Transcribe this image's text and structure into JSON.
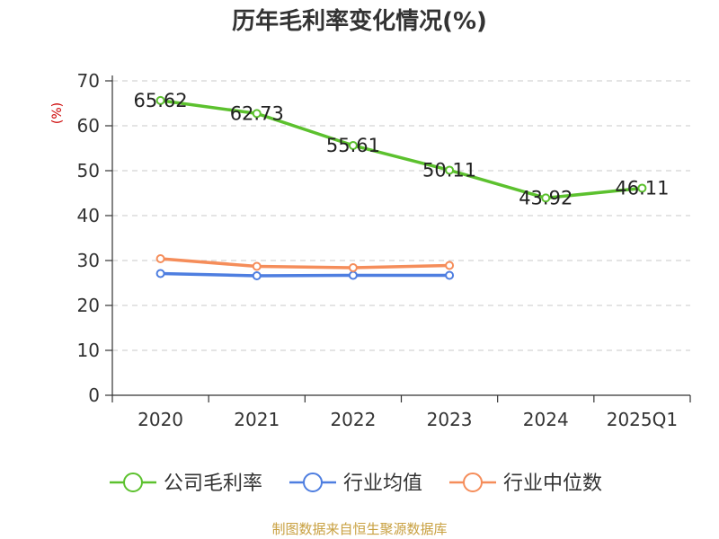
{
  "chart_data": {
    "type": "line",
    "title": "历年毛利率变化情况(%)",
    "ylabel": "(%)",
    "categories": [
      "2020",
      "2021",
      "2022",
      "2023",
      "2024",
      "2025Q1"
    ],
    "ylim": [
      0,
      70
    ],
    "yticks": [
      0,
      10,
      20,
      30,
      40,
      50,
      60,
      70
    ],
    "grid": true,
    "legend": "bottom",
    "series": [
      {
        "name": "公司毛利率",
        "color": "#5cc12e",
        "values": [
          65.62,
          62.73,
          55.61,
          50.11,
          43.92,
          46.11
        ],
        "labels": [
          "65.62",
          "62.73",
          "55.61",
          "50.11",
          "43.92",
          "46.11"
        ]
      },
      {
        "name": "行业均值",
        "color": "#4e7ee0",
        "values": [
          27.1,
          26.6,
          26.7,
          26.7,
          null,
          null
        ]
      },
      {
        "name": "行业中位数",
        "color": "#f58d5a",
        "values": [
          30.4,
          28.7,
          28.4,
          28.9,
          null,
          null
        ]
      }
    ]
  },
  "source": "制图数据来自恒生聚源数据库"
}
